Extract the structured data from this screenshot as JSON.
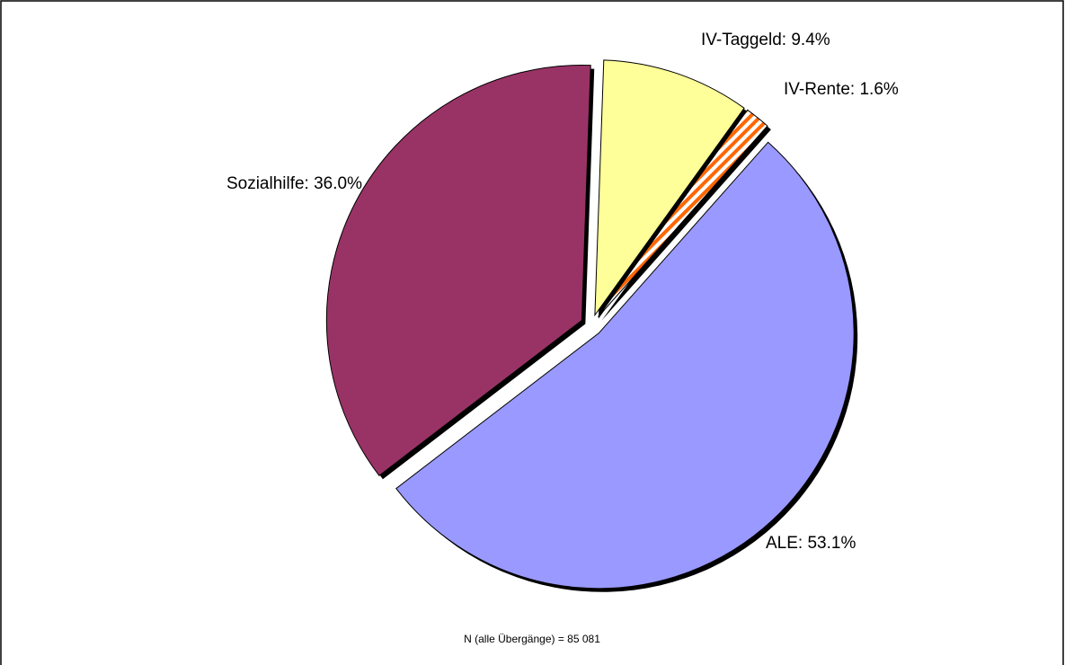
{
  "chart_data": {
    "type": "pie",
    "values": [
      9.4,
      1.6,
      53.1,
      36.0
    ],
    "value_labels": [
      "IV-Taggeld: 9.4%",
      "IV-Rente: 1.6%",
      "ALE: 53.1%",
      "Sozialhilfe: 36.0%"
    ],
    "colors": [
      "#ffff99",
      "#ff6600",
      "#9999ff",
      "#993366"
    ],
    "hatched": [
      false,
      true,
      false,
      false
    ],
    "note": "N (alle Übergänge) = 85 081"
  }
}
